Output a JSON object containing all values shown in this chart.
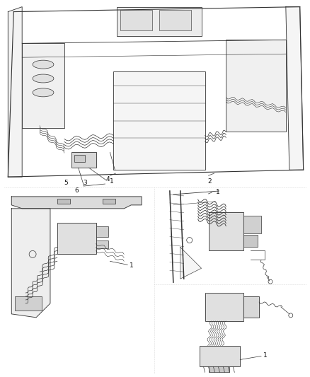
{
  "background_color": "#ffffff",
  "line_color": "#333333",
  "label_color": "#111111",
  "figure_width": 4.39,
  "figure_height": 5.33,
  "dpi": 100,
  "label_fontsize": 7,
  "separator_color": "#bbbbbb",
  "fill_light": "#f0f0f0",
  "fill_medium": "#e0e0e0",
  "fill_dark": "#cccccc"
}
